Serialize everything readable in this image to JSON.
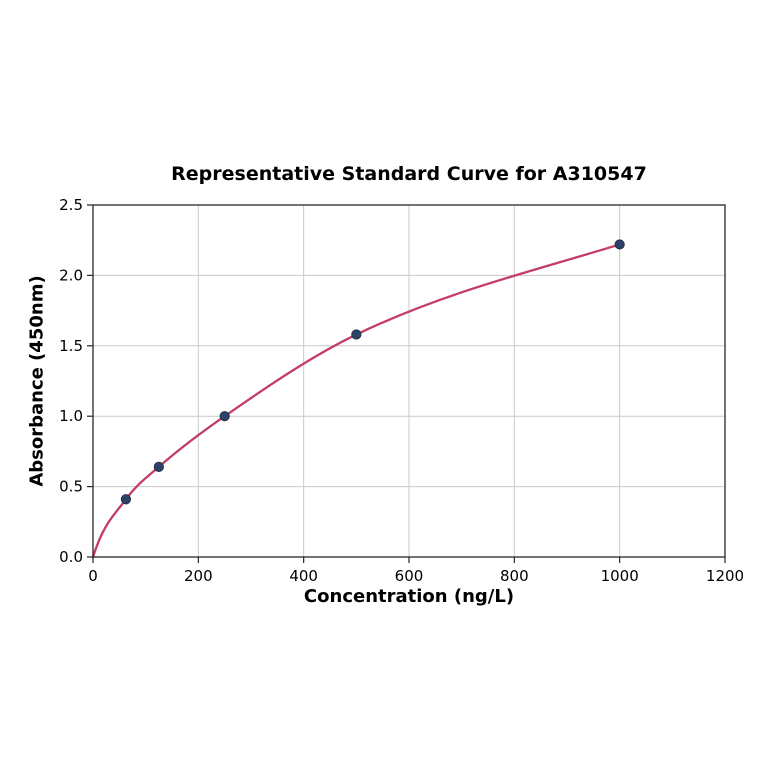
{
  "chart_data": {
    "type": "scatter",
    "title": "Representative Standard Curve for A310547",
    "xlabel": "Concentration (ng/L)",
    "ylabel": "Absorbance (450nm)",
    "xlim": [
      0,
      1200
    ],
    "ylim": [
      0.0,
      2.5
    ],
    "xticks": [
      0,
      200,
      400,
      600,
      800,
      1000,
      1200
    ],
    "xtick_labels": [
      "0",
      "200",
      "400",
      "600",
      "800",
      "1000",
      "1200"
    ],
    "yticks": [
      0.0,
      0.5,
      1.0,
      1.5,
      2.0,
      2.5
    ],
    "ytick_labels": [
      "0.0",
      "0.5",
      "1.0",
      "1.5",
      "2.0",
      "2.5"
    ],
    "grid": true,
    "legend": "none",
    "series": [
      {
        "name": "standards",
        "x": [
          62.5,
          125,
          250,
          500,
          1000
        ],
        "y": [
          0.41,
          0.64,
          1.0,
          1.58,
          2.22
        ]
      }
    ],
    "curve_points": {
      "x": [
        0,
        62.5,
        125,
        250,
        500,
        1000
      ],
      "y": [
        0.0,
        0.41,
        0.64,
        1.0,
        1.58,
        2.22
      ]
    },
    "colors": {
      "curve": "#c33d64",
      "marker_fill": "#2e4269",
      "marker_edge": "#22314f",
      "grid": "#c9c9c9",
      "spine": "#262626",
      "text": "#000000",
      "background": "#ffffff"
    }
  }
}
